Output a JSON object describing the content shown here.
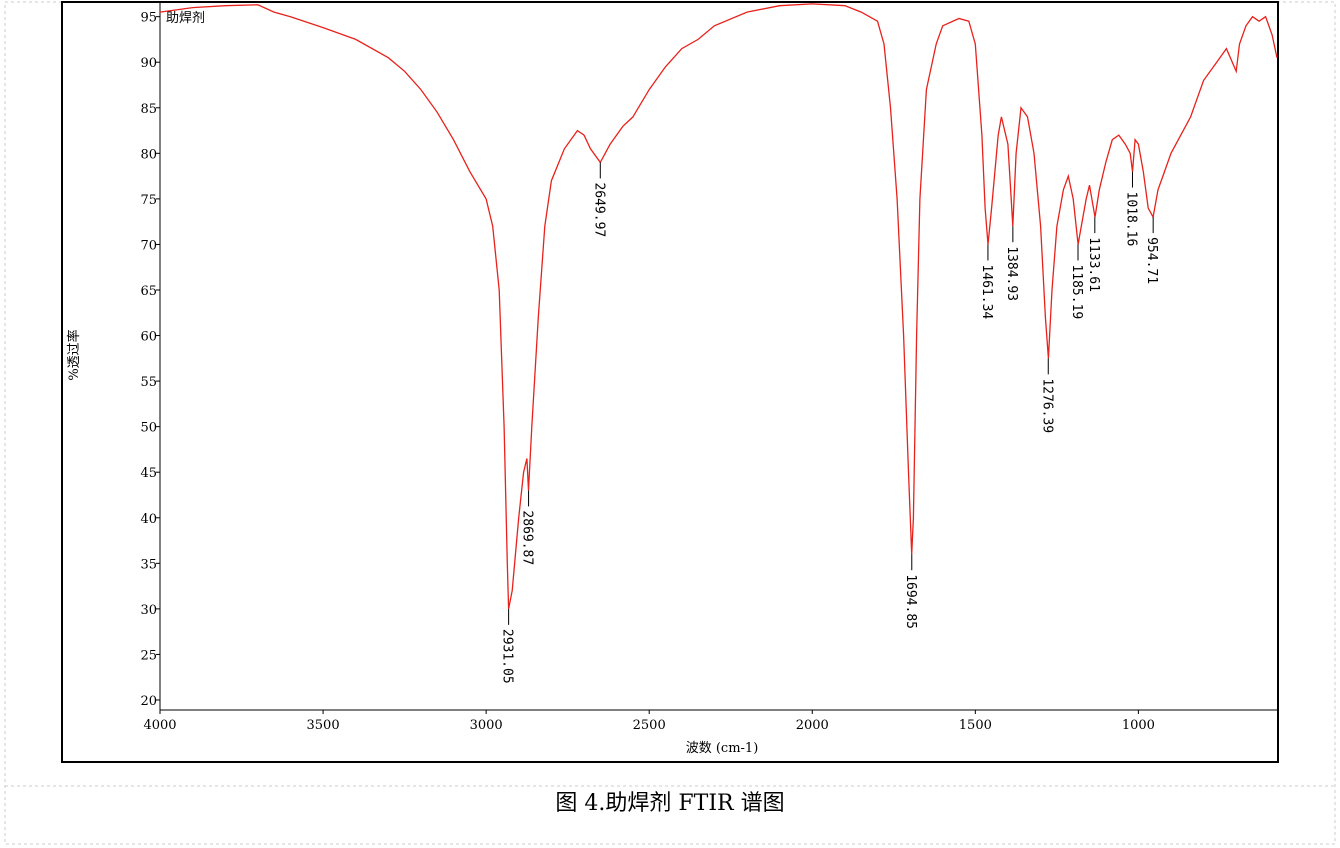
{
  "chart_data": {
    "type": "line",
    "x_label": "波数 (cm-1)",
    "y_label": "%透过率",
    "caption": "图 4.助焊剂 FTIR 谱图",
    "x": [
      4000,
      3900,
      3800,
      3700,
      3650,
      3600,
      3500,
      3400,
      3300,
      3250,
      3200,
      3150,
      3100,
      3050,
      3000,
      2980,
      2960,
      2945,
      2935,
      2931,
      2920,
      2900,
      2885,
      2875,
      2870,
      2860,
      2840,
      2820,
      2800,
      2760,
      2720,
      2700,
      2680,
      2650,
      2620,
      2580,
      2550,
      2500,
      2450,
      2400,
      2350,
      2300,
      2200,
      2100,
      2000,
      1900,
      1850,
      1800,
      1780,
      1760,
      1740,
      1720,
      1705,
      1695,
      1690,
      1680,
      1670,
      1650,
      1620,
      1600,
      1550,
      1520,
      1500,
      1480,
      1470,
      1461,
      1450,
      1430,
      1420,
      1400,
      1390,
      1385,
      1375,
      1360,
      1340,
      1320,
      1300,
      1285,
      1276,
      1265,
      1250,
      1230,
      1215,
      1200,
      1185,
      1175,
      1160,
      1150,
      1133,
      1120,
      1100,
      1080,
      1060,
      1040,
      1025,
      1018,
      1010,
      1000,
      985,
      970,
      955,
      940,
      920,
      900,
      870,
      840,
      800,
      760,
      730,
      700,
      690,
      670,
      650,
      630,
      610,
      590,
      575
    ],
    "series": [
      {
        "name": "助焊剂",
        "color": "#e8211b",
        "values": [
          95.5,
          96,
          96.2,
          96.3,
          95.5,
          95,
          93.8,
          92.5,
          90.5,
          89,
          87,
          84.5,
          81.5,
          78,
          75,
          72,
          65,
          50,
          35,
          30,
          32,
          40,
          45,
          46.5,
          43,
          50,
          62,
          72,
          77,
          80.5,
          82.5,
          82,
          80.5,
          79,
          81,
          83,
          84,
          87,
          89.5,
          91.5,
          92.5,
          94,
          95.5,
          96.2,
          96.4,
          96.2,
          95.5,
          94.5,
          92,
          85,
          75,
          60,
          45,
          36,
          40,
          60,
          75,
          87,
          92,
          94,
          94.8,
          94.5,
          92,
          82,
          74,
          70,
          74,
          82,
          84,
          81,
          75,
          72,
          80,
          85,
          84,
          80,
          72,
          62,
          57.5,
          65,
          72,
          76,
          77.5,
          75,
          70,
          72,
          75,
          76.5,
          73,
          76,
          79,
          81.5,
          82,
          81,
          80,
          78,
          81.5,
          81,
          78,
          74,
          73,
          76,
          78,
          80,
          82,
          84,
          88,
          90,
          91.5,
          89,
          92,
          94,
          95,
          94.5,
          95,
          93,
          90.5
        ]
      }
    ],
    "peaks": [
      {
        "x": 2931.05,
        "y": 30
      },
      {
        "x": 2869.87,
        "y": 43
      },
      {
        "x": 2649.97,
        "y": 79
      },
      {
        "x": 1694.85,
        "y": 36
      },
      {
        "x": 1461.34,
        "y": 70
      },
      {
        "x": 1384.93,
        "y": 72
      },
      {
        "x": 1276.39,
        "y": 57.5
      },
      {
        "x": 1185.19,
        "y": 70
      },
      {
        "x": 1133.61,
        "y": 73
      },
      {
        "x": 1018.16,
        "y": 78
      },
      {
        "x": 954.71,
        "y": 73
      }
    ],
    "xlim": [
      4000,
      575
    ],
    "ylim": [
      18.9,
      96.5
    ],
    "xticks": [
      4000,
      3500,
      3000,
      2500,
      2000,
      1500,
      1000
    ],
    "yticks": [
      20,
      25,
      30,
      35,
      40,
      45,
      50,
      55,
      60,
      65,
      70,
      75,
      80,
      85,
      90,
      95
    ]
  }
}
